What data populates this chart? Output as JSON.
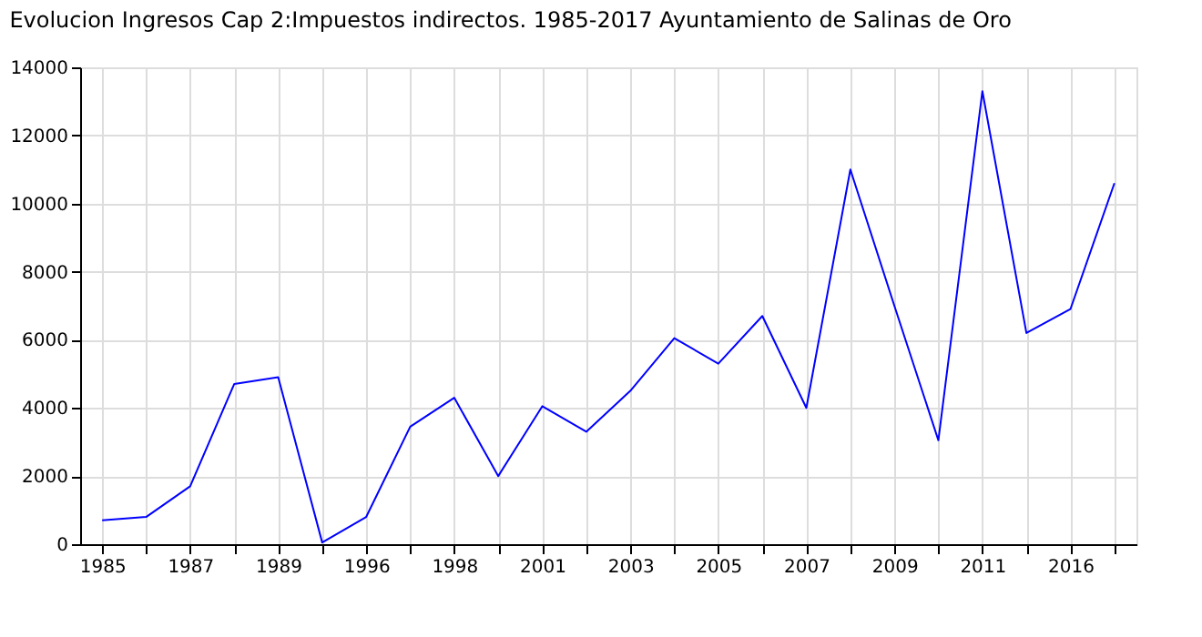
{
  "chart_data": {
    "type": "line",
    "title": "Evolucion Ingresos Cap 2:Impuestos indirectos. 1985-2017 Ayuntamiento de Salinas de Oro",
    "categories": [
      "1985",
      null,
      "1987",
      null,
      "1989",
      null,
      "1996",
      null,
      "1998",
      null,
      "2001",
      null,
      "2003",
      null,
      "2005",
      null,
      "2007",
      null,
      "2009",
      null,
      "2011",
      null,
      "2016",
      null
    ],
    "series": [
      {
        "color": "#0000ff",
        "values": [
          700,
          800,
          1700,
          4700,
          4900,
          50,
          800,
          3450,
          4300,
          2000,
          4050,
          3300,
          4500,
          6050,
          5300,
          6700,
          4000,
          11000,
          7000,
          3050,
          13300,
          6200,
          6900,
          10600
        ]
      }
    ],
    "ylim": [
      0,
      14000
    ],
    "yticks": [
      0,
      2000,
      4000,
      6000,
      8000,
      10000,
      12000,
      14000
    ],
    "grid": true,
    "marker": "none",
    "line_style": "solid"
  }
}
